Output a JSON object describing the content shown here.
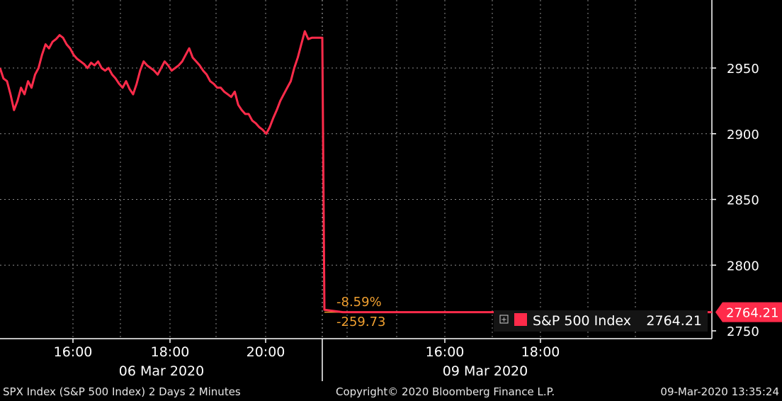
{
  "chart_data": {
    "type": "line",
    "yticks": [
      2750,
      2800,
      2850,
      2900,
      2950
    ],
    "ylim": [
      2740,
      3000
    ],
    "x_axis": {
      "time_labels": [
        "16:00",
        "18:00",
        "20:00",
        "16:00",
        "18:00"
      ],
      "date_labels": [
        "06 Mar 2020",
        "09 Mar 2020"
      ]
    },
    "series": [
      {
        "name": "S&P 500 Index",
        "color": "#ff2b4a",
        "values": [
          2950,
          2942,
          2940,
          2930,
          2918,
          2925,
          2935,
          2930,
          2940,
          2935,
          2945,
          2950,
          2960,
          2968,
          2965,
          2970,
          2972,
          2975,
          2973,
          2968,
          2965,
          2960,
          2957,
          2955,
          2953,
          2950,
          2954,
          2952,
          2955,
          2950,
          2948,
          2950,
          2945,
          2942,
          2938,
          2935,
          2940,
          2934,
          2930,
          2938,
          2948,
          2955,
          2952,
          2950,
          2948,
          2945,
          2950,
          2955,
          2952,
          2948,
          2950,
          2952,
          2955,
          2960,
          2965,
          2958,
          2955,
          2952,
          2948,
          2945,
          2940,
          2938,
          2935,
          2935,
          2932,
          2930,
          2928,
          2932,
          2922,
          2918,
          2915,
          2915,
          2910,
          2908,
          2905,
          2903,
          2900,
          2905,
          2912,
          2918,
          2925,
          2930,
          2935,
          2940,
          2950,
          2958,
          2968,
          2978,
          2972,
          2973,
          2973,
          2973,
          2973,
          2766,
          2764.21,
          2764.21,
          2764.21,
          2764.21,
          2764.21,
          2764.21,
          2764.21,
          2764.21,
          2764.21,
          2764.21,
          2764.21,
          2764.21,
          2764.21,
          2764.21,
          2764.21,
          2764.21,
          2764.21,
          2764.21,
          2764.21,
          2764.21,
          2764.21
        ]
      }
    ],
    "change_pct": "-8.59%",
    "change_abs": "-259.73",
    "last_value": "2764.21",
    "legend": {
      "name": "S&P 500 Index",
      "value": "2764.21"
    },
    "grid": true
  },
  "footer": {
    "left": "SPX Index (S&P 500 Index) 2 Days 2 Minutes",
    "center": "Copyright© 2020 Bloomberg Finance L.P.",
    "right": "09-Mar-2020 13:35:24"
  },
  "colors": {
    "background": "#000000",
    "line": "#ff2b4a",
    "accent": "#f0a030",
    "grid": "#8a8a8a",
    "axis": "#ffffff",
    "tag": "#ff2b4a"
  }
}
